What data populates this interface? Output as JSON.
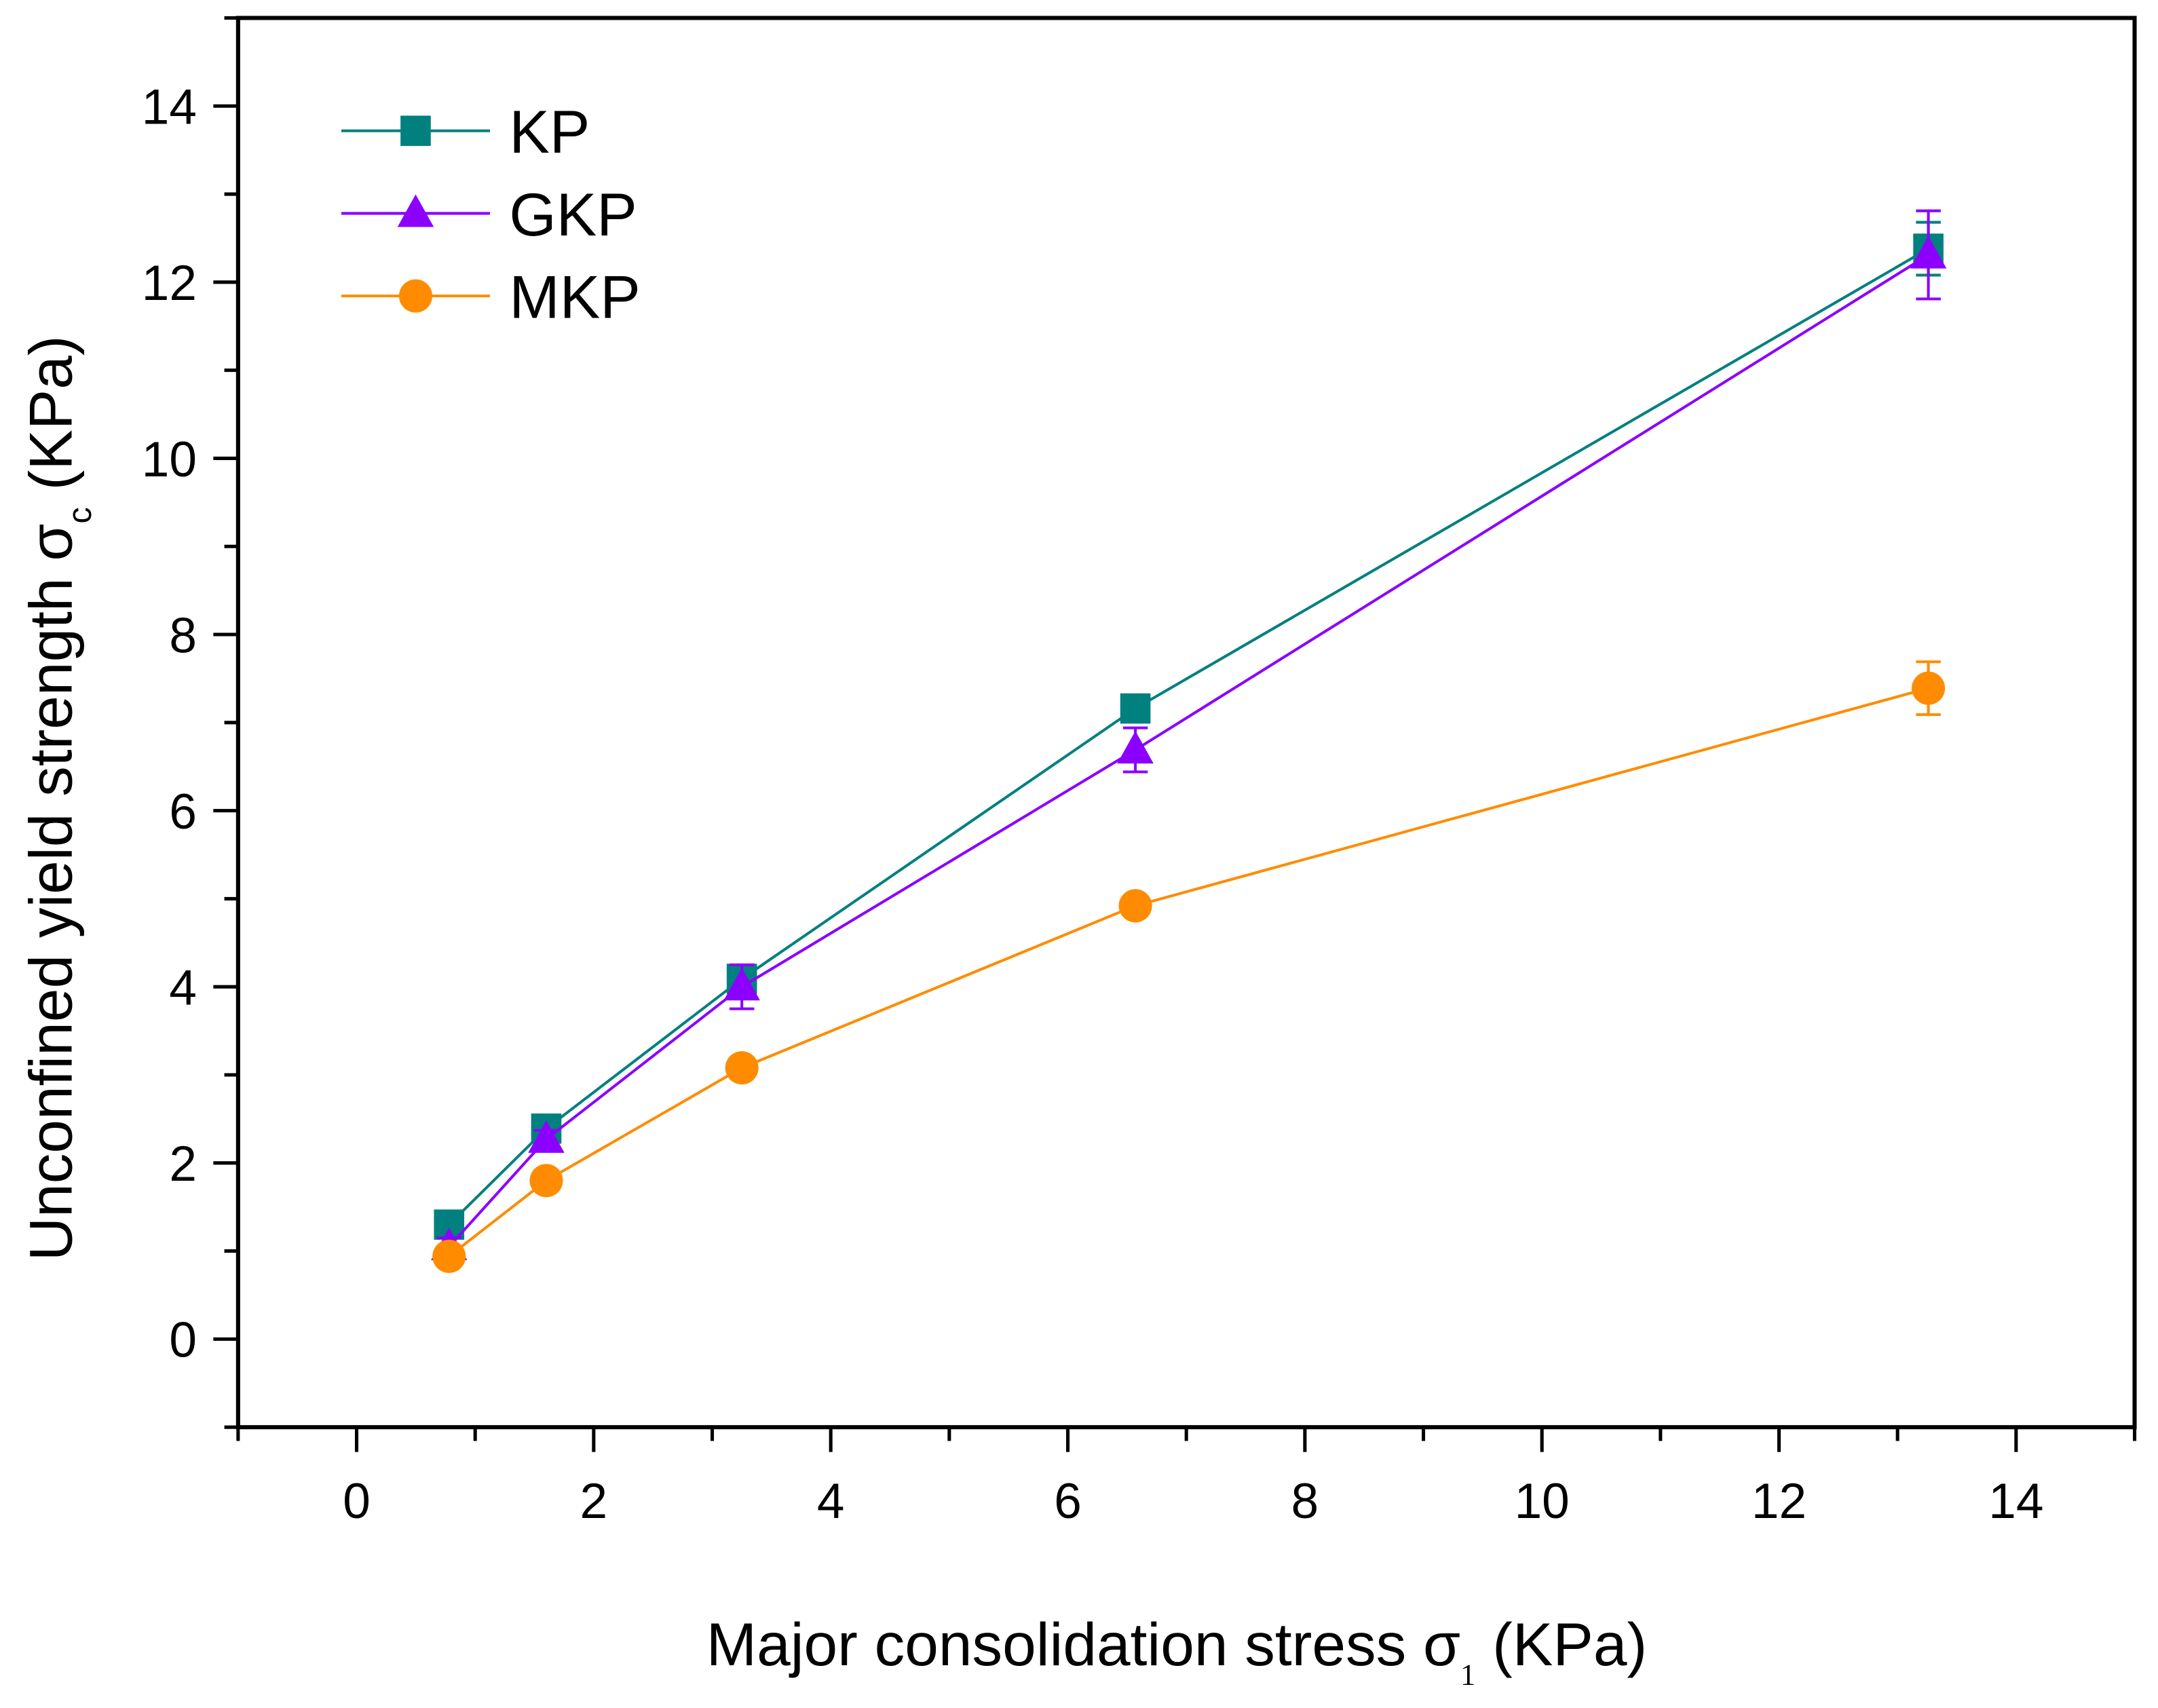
{
  "chart_data": {
    "type": "line",
    "title": "",
    "xlabel": "Major consolidation stress σ",
    "xlabel_sub": "1",
    "xlabel_unit": "(KPa)",
    "ylabel": "Unconfined yield strength σ",
    "ylabel_sub": "c",
    "ylabel_unit": "(KPa)",
    "xlim": [
      -1,
      15
    ],
    "ylim": [
      -1,
      15
    ],
    "xticks": [
      0,
      2,
      4,
      6,
      8,
      10,
      12,
      14
    ],
    "yticks": [
      0,
      2,
      4,
      6,
      8,
      10,
      12,
      14
    ],
    "grid": false,
    "legend_position": "top-left",
    "series": [
      {
        "name": "KP",
        "color": "#00807f",
        "marker": "square",
        "x": [
          0.78,
          1.6,
          3.25,
          6.57,
          13.26
        ],
        "y": [
          1.3,
          2.39,
          4.09,
          7.16,
          12.38
        ],
        "err": [
          0.1,
          0.1,
          0.1,
          0.1,
          0.3
        ]
      },
      {
        "name": "GKP",
        "color": "#8b00ff",
        "marker": "triangle",
        "x": [
          0.78,
          1.6,
          3.25,
          6.57,
          13.26
        ],
        "y": [
          1.05,
          2.27,
          4.0,
          6.69,
          12.31
        ],
        "err": [
          0.1,
          0.1,
          0.25,
          0.25,
          0.5
        ]
      },
      {
        "name": "MKP",
        "color": "#ff8c00",
        "marker": "circle",
        "x": [
          0.78,
          1.6,
          3.25,
          6.57,
          13.26
        ],
        "y": [
          0.94,
          1.8,
          3.08,
          4.92,
          7.39
        ],
        "err": [
          0.1,
          0.1,
          0.1,
          0.1,
          0.3
        ]
      }
    ]
  }
}
